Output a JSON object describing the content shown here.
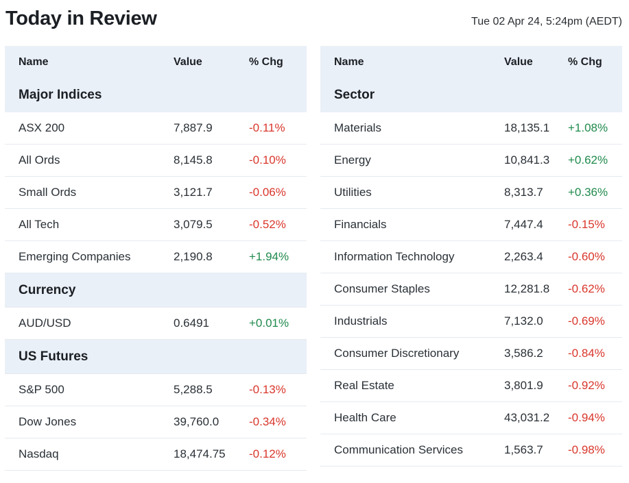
{
  "header": {
    "title": "Today in Review",
    "timestamp": "Tue 02 Apr 24, 5:24pm (AEDT)"
  },
  "columns": {
    "name": "Name",
    "value": "Value",
    "chg": "% Chg"
  },
  "left": {
    "major_indices": {
      "title": "Major Indices",
      "rows": [
        {
          "name": "ASX 200",
          "value": "7,887.9",
          "chg": "-0.11%",
          "dir": "neg"
        },
        {
          "name": "All Ords",
          "value": "8,145.8",
          "chg": "-0.10%",
          "dir": "neg"
        },
        {
          "name": "Small Ords",
          "value": "3,121.7",
          "chg": "-0.06%",
          "dir": "neg"
        },
        {
          "name": "All Tech",
          "value": "3,079.5",
          "chg": "-0.52%",
          "dir": "neg"
        },
        {
          "name": "Emerging Companies",
          "value": "2,190.8",
          "chg": "+1.94%",
          "dir": "pos"
        }
      ]
    },
    "currency": {
      "title": "Currency",
      "rows": [
        {
          "name": "AUD/USD",
          "value": "0.6491",
          "chg": "+0.01%",
          "dir": "pos"
        }
      ]
    },
    "us_futures": {
      "title": "US Futures",
      "rows": [
        {
          "name": "S&P 500",
          "value": "5,288.5",
          "chg": "-0.13%",
          "dir": "neg"
        },
        {
          "name": "Dow Jones",
          "value": "39,760.0",
          "chg": "-0.34%",
          "dir": "neg"
        },
        {
          "name": "Nasdaq",
          "value": "18,474.75",
          "chg": "-0.12%",
          "dir": "neg"
        }
      ]
    }
  },
  "right": {
    "sector": {
      "title": "Sector",
      "rows": [
        {
          "name": "Materials",
          "value": "18,135.1",
          "chg": "+1.08%",
          "dir": "pos"
        },
        {
          "name": "Energy",
          "value": "10,841.3",
          "chg": "+0.62%",
          "dir": "pos"
        },
        {
          "name": "Utilities",
          "value": "8,313.7",
          "chg": "+0.36%",
          "dir": "pos"
        },
        {
          "name": "Financials",
          "value": "7,447.4",
          "chg": "-0.15%",
          "dir": "neg"
        },
        {
          "name": "Information Technology",
          "value": "2,263.4",
          "chg": "-0.60%",
          "dir": "neg"
        },
        {
          "name": "Consumer Staples",
          "value": "12,281.8",
          "chg": "-0.62%",
          "dir": "neg"
        },
        {
          "name": "Industrials",
          "value": "7,132.0",
          "chg": "-0.69%",
          "dir": "neg"
        },
        {
          "name": "Consumer Discretionary",
          "value": "3,586.2",
          "chg": "-0.84%",
          "dir": "neg"
        },
        {
          "name": "Real Estate",
          "value": "3,801.9",
          "chg": "-0.92%",
          "dir": "neg"
        },
        {
          "name": "Health Care",
          "value": "43,031.2",
          "chg": "-0.94%",
          "dir": "neg"
        },
        {
          "name": "Communication Services",
          "value": "1,563.7",
          "chg": "-0.98%",
          "dir": "neg"
        }
      ]
    }
  },
  "colors": {
    "negative": "#d9362b",
    "positive": "#1f8a4c",
    "header_bg": "#eaf0f8"
  }
}
